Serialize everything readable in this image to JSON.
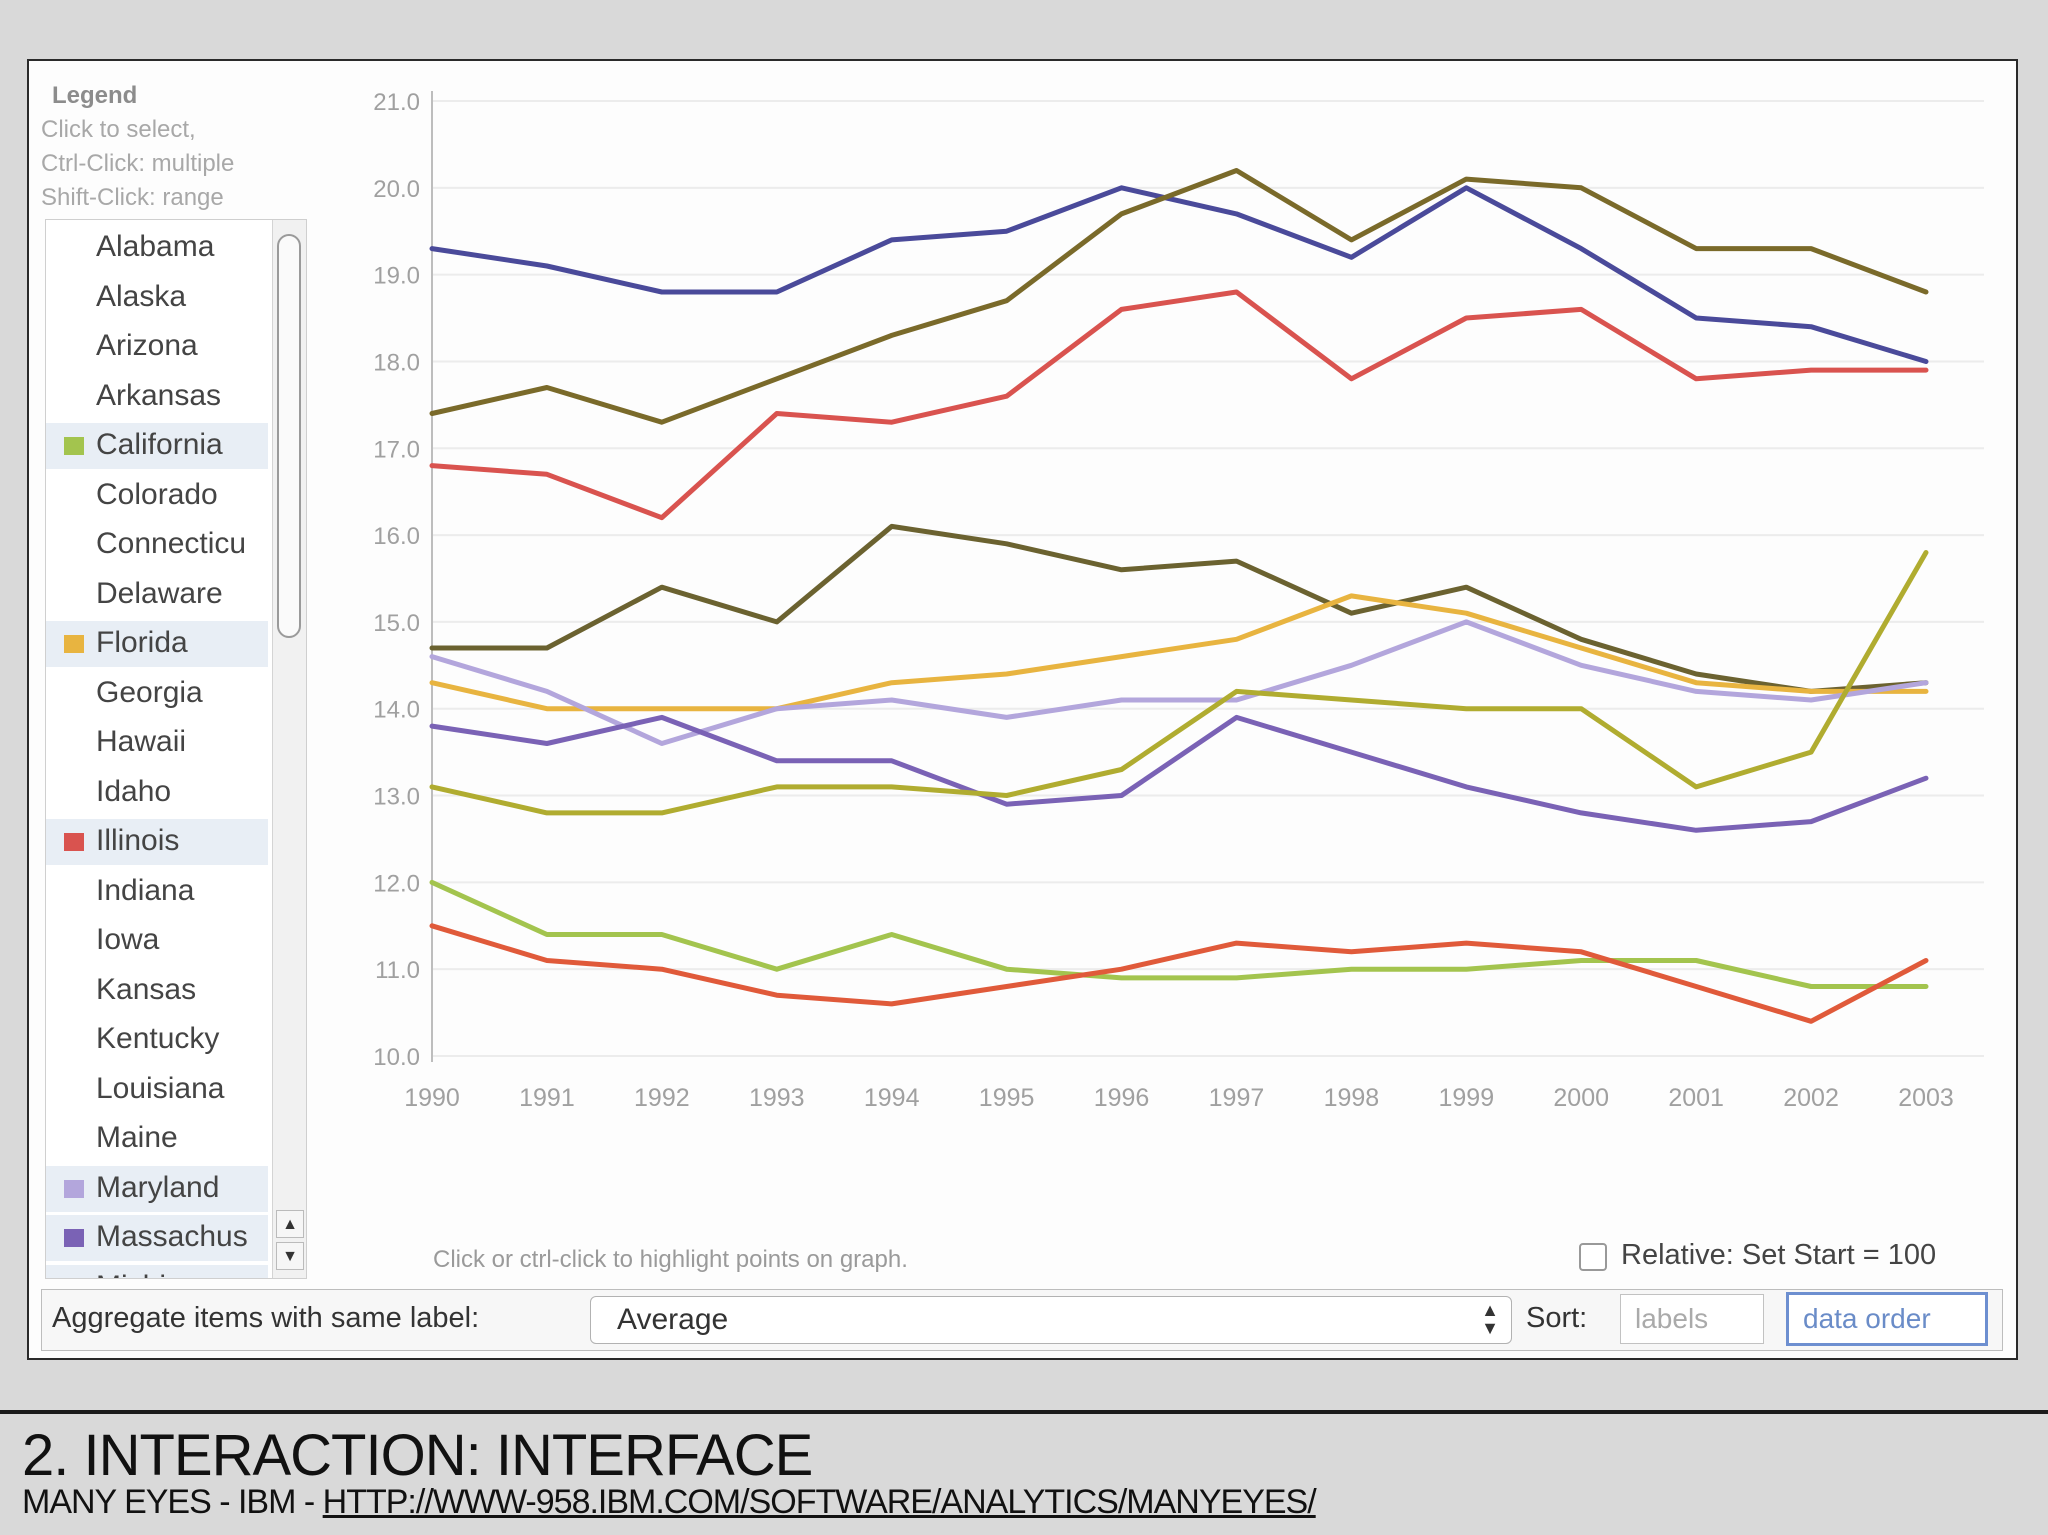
{
  "legend": {
    "title": "Legend",
    "help": [
      "Click to select,",
      "Ctrl-Click: multiple",
      "Shift-Click: range"
    ],
    "items": [
      {
        "label": "Alabama",
        "selected": false,
        "color": ""
      },
      {
        "label": "Alaska",
        "selected": false,
        "color": ""
      },
      {
        "label": "Arizona",
        "selected": false,
        "color": ""
      },
      {
        "label": "Arkansas",
        "selected": false,
        "color": ""
      },
      {
        "label": "California",
        "selected": true,
        "color": "#a3c44e"
      },
      {
        "label": "Colorado",
        "selected": false,
        "color": ""
      },
      {
        "label": "Connecticu",
        "selected": false,
        "color": ""
      },
      {
        "label": "Delaware",
        "selected": false,
        "color": ""
      },
      {
        "label": "Florida",
        "selected": true,
        "color": "#e8b440"
      },
      {
        "label": "Georgia",
        "selected": false,
        "color": ""
      },
      {
        "label": "Hawaii",
        "selected": false,
        "color": ""
      },
      {
        "label": "Idaho",
        "selected": false,
        "color": ""
      },
      {
        "label": "Illinois",
        "selected": true,
        "color": "#d9534f"
      },
      {
        "label": "Indiana",
        "selected": false,
        "color": ""
      },
      {
        "label": "Iowa",
        "selected": false,
        "color": ""
      },
      {
        "label": "Kansas",
        "selected": false,
        "color": ""
      },
      {
        "label": "Kentucky",
        "selected": false,
        "color": ""
      },
      {
        "label": "Louisiana",
        "selected": false,
        "color": ""
      },
      {
        "label": "Maine",
        "selected": false,
        "color": ""
      },
      {
        "label": "Maryland",
        "selected": true,
        "color": "#b3a6dc"
      },
      {
        "label": "Massachus",
        "selected": true,
        "color": "#7a62b5"
      },
      {
        "label": "Michigan",
        "selected": true,
        "color": "#4a4a9a"
      }
    ]
  },
  "chart_hint": "Click or ctrl-click to highlight points on graph.",
  "relative_label": "Relative: Set Start = 100",
  "aggregate": {
    "label": "Aggregate items with same label:",
    "value": "Average",
    "sort_label": "Sort:",
    "sort_labels_button": "labels",
    "sort_data_order_button": "data order"
  },
  "chart_data": {
    "type": "line",
    "x": [
      1990,
      1991,
      1992,
      1993,
      1994,
      1995,
      1996,
      1997,
      1998,
      1999,
      2000,
      2001,
      2002,
      2003
    ],
    "ylim": [
      10.0,
      21.0
    ],
    "yticks": [
      "10.0",
      "11.0",
      "12.0",
      "13.0",
      "14.0",
      "15.0",
      "16.0",
      "17.0",
      "18.0",
      "19.0",
      "20.0",
      "21.0"
    ],
    "grid": true,
    "series": [
      {
        "color": "#4a4a9a",
        "values": [
          19.3,
          19.1,
          18.8,
          18.8,
          19.4,
          19.5,
          20.0,
          19.7,
          19.2,
          20.0,
          19.3,
          18.5,
          18.4,
          18.0
        ]
      },
      {
        "color": "#7a6a2a",
        "values": [
          17.4,
          17.7,
          17.3,
          17.8,
          18.3,
          18.7,
          19.7,
          20.2,
          19.4,
          20.1,
          20.0,
          19.3,
          19.3,
          18.8
        ]
      },
      {
        "color": "#d9534f",
        "values": [
          16.8,
          16.7,
          16.2,
          17.4,
          17.3,
          17.6,
          18.6,
          18.8,
          17.8,
          18.5,
          18.6,
          17.8,
          17.9,
          17.9
        ]
      },
      {
        "color": "#6b6230",
        "values": [
          14.7,
          14.7,
          15.4,
          15.0,
          16.1,
          15.9,
          15.6,
          15.7,
          15.1,
          15.4,
          14.8,
          14.4,
          14.2,
          14.3
        ]
      },
      {
        "color": "#e8b440",
        "values": [
          14.3,
          14.0,
          14.0,
          14.0,
          14.3,
          14.4,
          14.6,
          14.8,
          15.3,
          15.1,
          14.7,
          14.3,
          14.2,
          14.2
        ]
      },
      {
        "color": "#b3a6dc",
        "values": [
          14.6,
          14.2,
          13.6,
          14.0,
          14.1,
          13.9,
          14.1,
          14.1,
          14.5,
          15.0,
          14.5,
          14.2,
          14.1,
          14.3
        ]
      },
      {
        "color": "#7a62b5",
        "values": [
          13.8,
          13.6,
          13.9,
          13.4,
          13.4,
          12.9,
          13.0,
          13.9,
          13.5,
          13.1,
          12.8,
          12.6,
          12.7,
          13.2
        ]
      },
      {
        "color": "#b0ac30",
        "values": [
          13.1,
          12.8,
          12.8,
          13.1,
          13.1,
          13.0,
          13.3,
          14.2,
          14.1,
          14.0,
          14.0,
          13.1,
          13.5,
          15.8
        ]
      },
      {
        "color": "#a3c44e",
        "values": [
          12.0,
          11.4,
          11.4,
          11.0,
          11.4,
          11.0,
          10.9,
          10.9,
          11.0,
          11.0,
          11.1,
          11.1,
          10.8,
          10.8
        ]
      },
      {
        "color": "#e05a3a",
        "values": [
          11.5,
          11.1,
          11.0,
          10.7,
          10.6,
          10.8,
          11.0,
          11.3,
          11.2,
          11.3,
          11.2,
          10.8,
          10.4,
          11.1
        ]
      }
    ]
  },
  "slide": {
    "title": "2. INTERACTION: INTERFACE",
    "subtitle_prefix": "MANY EYES - IBM - ",
    "link": "HTTP://WWW-958.IBM.COM/SOFTWARE/ANALYTICS/MANYEYES/"
  }
}
